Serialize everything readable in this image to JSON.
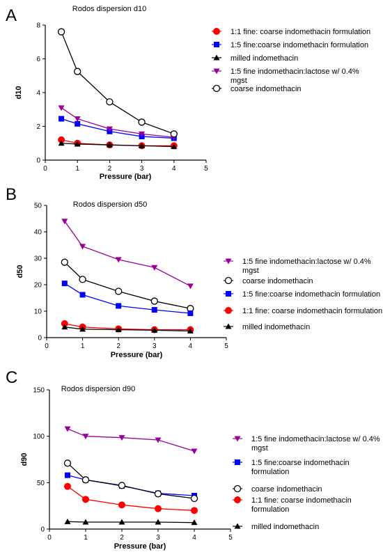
{
  "chart_data": [
    {
      "panel": "A",
      "type": "line",
      "title": "Rodos dispersion d10",
      "xlabel": "Pressure (bar)",
      "ylabel": "d10",
      "xlim": [
        0,
        5
      ],
      "ylim": [
        0,
        8
      ],
      "xticks": [
        0,
        1,
        2,
        3,
        4,
        5
      ],
      "yticks": [
        0,
        2,
        4,
        6,
        8
      ],
      "grid": false,
      "legend_position": "right",
      "x": [
        0.5,
        1,
        2,
        3,
        4
      ],
      "series": [
        {
          "name": "1:1 fine: coarse indomethacin formulation",
          "lines": [
            "1:1 fine: coarse indomethacin formulation"
          ],
          "color": "#ff0000",
          "marker": "circle-filled",
          "values": [
            1.2,
            1.0,
            0.9,
            0.85,
            0.85
          ]
        },
        {
          "name": "1:5 fine:coarse indomethacin formulation",
          "lines": [
            "1:5 fine:coarse indomethacin formulation"
          ],
          "color": "#0000ff",
          "marker": "square",
          "values": [
            2.45,
            2.15,
            1.7,
            1.4,
            1.3
          ]
        },
        {
          "name": "milled indomethacin",
          "lines": [
            "milled indomethacin"
          ],
          "color": "#000000",
          "marker": "triangle-up",
          "values": [
            1.0,
            0.95,
            0.9,
            0.85,
            0.8
          ]
        },
        {
          "name": "1:5 fine indomethacin:lactose w/ 0.4% mgst",
          "lines": [
            "1:5 fine indomethacin:lactose w/ 0.4%",
            "mgst"
          ],
          "color": "#990099",
          "marker": "triangle-down",
          "values": [
            3.1,
            2.45,
            1.85,
            1.55,
            1.35
          ]
        },
        {
          "name": "coarse indomethacin",
          "lines": [
            "coarse indomethacin"
          ],
          "color": "#000000",
          "marker": "circle-open",
          "values": [
            7.6,
            5.25,
            3.45,
            2.25,
            1.55
          ]
        }
      ]
    },
    {
      "panel": "B",
      "type": "line",
      "title": "Rodos dispersion d50",
      "xlabel": "Pressure (bar)",
      "ylabel": "d50",
      "xlim": [
        0,
        5
      ],
      "ylim": [
        0,
        50
      ],
      "xticks": [
        0,
        1,
        2,
        3,
        4,
        5
      ],
      "yticks": [
        0,
        10,
        20,
        30,
        40,
        50
      ],
      "grid": false,
      "legend_position": "right",
      "x": [
        0.5,
        1,
        2,
        3,
        4
      ],
      "series": [
        {
          "name": "1:5 fine indomethacin:lactose w/ 0.4% mgst",
          "lines": [
            "1:5 fine indomethacin:lactose w/ 0.4%",
            "mgst"
          ],
          "color": "#990099",
          "marker": "triangle-down",
          "values": [
            44,
            34.5,
            29.5,
            26.5,
            19.5
          ]
        },
        {
          "name": "coarse indomethacin",
          "lines": [
            "coarse indomethacin"
          ],
          "color": "#000000",
          "marker": "circle-open",
          "values": [
            28.5,
            22,
            17.5,
            13.8,
            11
          ]
        },
        {
          "name": "1:5 fine:coarse indomethacin formulation",
          "lines": [
            "1:5 fine:coarse indomethacin formulation"
          ],
          "color": "#0000ff",
          "marker": "square",
          "values": [
            20.5,
            16.2,
            12,
            10.5,
            9.2
          ]
        },
        {
          "name": "1:1 fine: coarse indomethacin formulation",
          "lines": [
            "1:1 fine: coarse indomethacin formulation"
          ],
          "color": "#ff0000",
          "marker": "circle-filled",
          "values": [
            5.3,
            4,
            3.3,
            3,
            3
          ]
        },
        {
          "name": "milled indomethacin",
          "lines": [
            "milled indomethacin"
          ],
          "color": "#000000",
          "marker": "triangle-up",
          "values": [
            4,
            3.2,
            3,
            2.8,
            2.5
          ]
        }
      ]
    },
    {
      "panel": "C",
      "type": "line",
      "title": "Rodos dispersion d90",
      "xlabel": "Pressure (bar)",
      "ylabel": "d90",
      "xlim": [
        0,
        5
      ],
      "ylim": [
        0,
        150
      ],
      "xticks": [
        0,
        1,
        2,
        3,
        4,
        5
      ],
      "yticks": [
        0,
        50,
        100,
        150
      ],
      "grid": false,
      "legend_position": "right",
      "x": [
        0.5,
        1,
        2,
        3,
        4
      ],
      "series": [
        {
          "name": "1:5 fine indomethacin:lactose w/ 0.4% mgst",
          "lines": [
            "1:5 fine indomethacin:lactose w/ 0.4%",
            "mgst"
          ],
          "color": "#990099",
          "marker": "triangle-down",
          "values": [
            108,
            100,
            98.5,
            96,
            84
          ]
        },
        {
          "name": "1:5 fine:coarse indomethacin formulation",
          "lines": [
            "1:5 fine:coarse indomethacin",
            "formulation"
          ],
          "color": "#0000ff",
          "marker": "square",
          "values": [
            58,
            53,
            46.5,
            38.5,
            36
          ]
        },
        {
          "name": "coarse indomethacin",
          "lines": [
            "coarse indomethacin"
          ],
          "color": "#000000",
          "marker": "circle-open",
          "values": [
            71,
            53,
            47,
            38,
            33
          ]
        },
        {
          "name": "1:1 fine: coarse indomethacin formulation",
          "lines": [
            "1:1 fine: coarse indomethacin",
            "formulation"
          ],
          "color": "#ff0000",
          "marker": "circle-filled",
          "values": [
            46,
            32,
            26,
            22,
            20
          ]
        },
        {
          "name": "milled indomethacin",
          "lines": [
            "milled indomethacin"
          ],
          "color": "#000000",
          "marker": "triangle-up",
          "values": [
            8,
            7.5,
            7.5,
            7.5,
            7
          ]
        }
      ]
    }
  ]
}
